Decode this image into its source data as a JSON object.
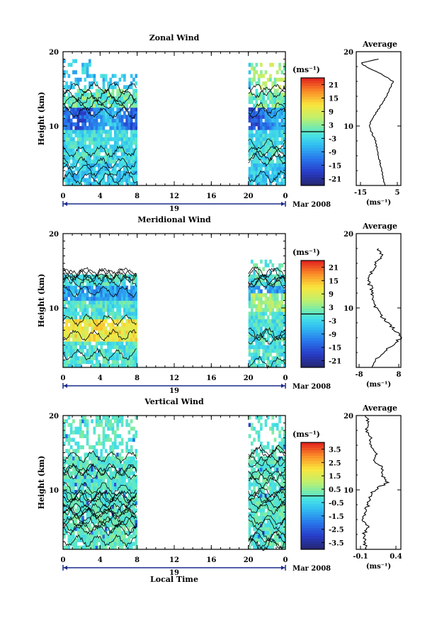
{
  "unit_label": "(ms⁻¹)",
  "date_label": "Mar 2008",
  "date_tick": "19",
  "common_xlabel": "Local Time",
  "panels": [
    {
      "id": "zonal",
      "title": "Zonal Wind",
      "ylabel": "Height (km)",
      "y_ticks": [
        "20",
        "10"
      ],
      "x_ticks": [
        "0",
        "4",
        "8",
        "12",
        "16",
        "20",
        "0"
      ],
      "colorbar_ticks": [
        "21",
        "15",
        "9",
        "3",
        "-3",
        "-9",
        "-15",
        "-21"
      ],
      "avg_title": "Average",
      "avg_xticks": [
        "-15",
        "5"
      ],
      "avg_yticks": [
        "20",
        "10"
      ],
      "avg_unit": "(ms⁻¹)"
    },
    {
      "id": "meridional",
      "title": "Meridional Wind",
      "ylabel": "Height (km)",
      "y_ticks": [
        "20",
        "10"
      ],
      "x_ticks": [
        "0",
        "4",
        "8",
        "12",
        "16",
        "20",
        "0"
      ],
      "colorbar_ticks": [
        "21",
        "15",
        "9",
        "3",
        "-3",
        "-9",
        "-15",
        "-21"
      ],
      "avg_title": "Average",
      "avg_xticks": [
        "-8",
        "8"
      ],
      "avg_yticks": [
        "20",
        "10"
      ],
      "avg_unit": "(ms⁻¹)"
    },
    {
      "id": "vertical",
      "title": "Vertical Wind",
      "ylabel": "Height (km)",
      "y_ticks": [
        "20",
        "10"
      ],
      "x_ticks": [
        "0",
        "4",
        "8",
        "12",
        "16",
        "20",
        "0"
      ],
      "colorbar_ticks": [
        "3.5",
        "2.5",
        "1.5",
        "0.5",
        "-0.5",
        "-1.5",
        "-2.5",
        "-3.5"
      ],
      "avg_title": "Average",
      "avg_xticks": [
        "-0.1",
        "0.4"
      ],
      "avg_yticks": [
        "20",
        "10"
      ],
      "avg_unit": "(ms⁻¹)"
    }
  ],
  "chart_data": [
    {
      "type": "heatmap",
      "title": "Zonal Wind",
      "xlabel": "",
      "ylabel": "Height (km)",
      "xlim": [
        0,
        24
      ],
      "ylim": [
        2,
        20
      ],
      "data_x_ranges": [
        [
          0,
          8
        ],
        [
          20,
          24
        ]
      ],
      "colorbar_range": [
        -24,
        24
      ],
      "colorbar_unit": "(ms⁻¹)",
      "average_profile": {
        "xlim": [
          -20,
          8
        ],
        "heights": [
          2,
          3,
          4,
          5,
          6,
          7,
          8,
          9,
          10,
          11,
          12,
          13,
          14,
          15,
          16,
          17,
          18,
          18.5,
          19
        ],
        "values": [
          -2,
          -3,
          -4,
          -5,
          -6,
          -7,
          -8,
          -10,
          -12,
          -10,
          -7,
          -4,
          -1,
          1,
          3,
          -4,
          -14,
          -17,
          -6
        ]
      }
    },
    {
      "type": "heatmap",
      "title": "Meridional Wind",
      "xlabel": "",
      "ylabel": "Height (km)",
      "xlim": [
        0,
        24
      ],
      "ylim": [
        2,
        20
      ],
      "data_x_ranges": [
        [
          0,
          8
        ],
        [
          20,
          24
        ]
      ],
      "colorbar_range": [
        -24,
        24
      ],
      "colorbar_unit": "(ms⁻¹)",
      "average_profile": {
        "xlim": [
          -8,
          8
        ],
        "heights": [
          2,
          3,
          4,
          5,
          6,
          7,
          8,
          9,
          10,
          11,
          12,
          13,
          14,
          15,
          16,
          17,
          18
        ],
        "values": [
          -3,
          -1,
          2,
          5,
          8,
          6,
          3,
          1,
          -1,
          -2,
          -2,
          -3,
          -4,
          -2,
          -1,
          1,
          0
        ]
      }
    },
    {
      "type": "heatmap",
      "title": "Vertical Wind",
      "xlabel": "Local Time",
      "ylabel": "Height (km)",
      "xlim": [
        0,
        24
      ],
      "ylim": [
        2,
        20
      ],
      "data_x_ranges": [
        [
          0,
          8
        ],
        [
          20,
          24
        ]
      ],
      "colorbar_range": [
        -4,
        4
      ],
      "colorbar_unit": "(ms⁻¹)",
      "average_profile": {
        "xlim": [
          -0.1,
          0.4
        ],
        "heights": [
          2,
          3,
          4,
          5,
          6,
          7,
          8,
          9,
          10,
          11,
          12,
          13,
          14,
          15,
          16,
          17,
          18,
          19,
          20
        ],
        "values": [
          0.0,
          0.0,
          -0.02,
          0.04,
          -0.03,
          0.0,
          0.03,
          0.05,
          0.1,
          0.25,
          0.18,
          0.2,
          0.08,
          0.12,
          0.05,
          0.07,
          0.02,
          0.04,
          0.0
        ]
      }
    }
  ]
}
